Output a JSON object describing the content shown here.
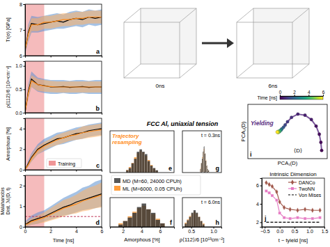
{
  "figure": {
    "title": "FCC Al, uniaxial tension",
    "snapshots": [
      "0ns",
      "6ns"
    ],
    "training": {
      "label": "Training",
      "range": [
        0,
        1.5
      ],
      "color": "#e8686a"
    }
  },
  "chart_data": [
    {
      "type": "line",
      "label": "a",
      "ylabel": "Tr(σ) [GPa]",
      "x": [
        0,
        0.25,
        0.5,
        1,
        1.5,
        2,
        2.5,
        3,
        3.5,
        4,
        4.5,
        5,
        5.5,
        6
      ],
      "xlim": [
        0,
        6
      ],
      "xticks": [
        0,
        2,
        4,
        6
      ],
      "ylim": [
        6,
        8
      ],
      "yticks": [
        6,
        7,
        8
      ],
      "tick_labels": "y",
      "series": [
        {
          "color": "#000000",
          "values": [
            6.2,
            6.9,
            7.25,
            7.2,
            7.25,
            7.3,
            7.35,
            7.3,
            7.4,
            7.45,
            7.4,
            7.5,
            7.45,
            7.5
          ],
          "lower": [
            6.05,
            6.55,
            6.9,
            6.9,
            6.95,
            7.0,
            7.05,
            7.05,
            7.1,
            7.15,
            7.1,
            7.2,
            7.15,
            7.2
          ],
          "upper": [
            6.35,
            7.2,
            7.55,
            7.5,
            7.55,
            7.6,
            7.65,
            7.6,
            7.7,
            7.75,
            7.7,
            7.8,
            7.75,
            7.8
          ]
        },
        {
          "color": "#ff8c1a",
          "values": [
            6.2,
            6.85,
            7.2,
            7.2,
            7.3,
            7.3,
            7.35,
            7.4,
            7.4,
            7.45,
            7.45,
            7.5,
            7.5,
            7.5
          ],
          "lower": [
            6.1,
            6.6,
            6.95,
            6.95,
            7.05,
            7.05,
            7.1,
            7.15,
            7.15,
            7.2,
            7.2,
            7.25,
            7.25,
            7.25
          ],
          "upper": [
            6.3,
            7.1,
            7.45,
            7.45,
            7.55,
            7.55,
            7.6,
            7.65,
            7.65,
            7.7,
            7.7,
            7.75,
            7.75,
            7.75
          ]
        }
      ]
    },
    {
      "type": "line",
      "label": "b",
      "ylabel": "ρ⟨112⟩/6 [10¹³cm⁻²]",
      "x": [
        0,
        0.25,
        0.5,
        1,
        1.5,
        2,
        2.5,
        3,
        3.5,
        4,
        4.5,
        5,
        5.5,
        6
      ],
      "xlim": [
        0,
        6
      ],
      "xticks": [
        0,
        2,
        4,
        6
      ],
      "ylim": [
        0,
        1.1
      ],
      "yticks": [
        {
          "value": 0,
          "label": "0.0"
        },
        0.5,
        {
          "value": 1,
          "label": "1.0"
        }
      ],
      "tick_labels": "y",
      "series": [
        {
          "color": "#000000",
          "values": [
            0.0,
            0.45,
            0.72,
            0.6,
            0.58,
            0.55,
            0.55,
            0.56,
            0.54,
            0.55,
            0.56,
            0.54,
            0.55,
            0.55
          ],
          "lower": [
            0.0,
            0.3,
            0.55,
            0.45,
            0.42,
            0.4,
            0.4,
            0.42,
            0.4,
            0.4,
            0.42,
            0.4,
            0.4,
            0.4
          ],
          "upper": [
            0.0,
            0.6,
            0.88,
            0.75,
            0.72,
            0.7,
            0.7,
            0.7,
            0.68,
            0.7,
            0.7,
            0.68,
            0.7,
            0.7
          ]
        },
        {
          "color": "#ff8c1a",
          "values": [
            0.0,
            0.42,
            0.68,
            0.6,
            0.57,
            0.56,
            0.55,
            0.55,
            0.55,
            0.55,
            0.55,
            0.55,
            0.55,
            0.55
          ],
          "lower": [
            0.0,
            0.3,
            0.55,
            0.47,
            0.45,
            0.44,
            0.43,
            0.43,
            0.43,
            0.43,
            0.43,
            0.43,
            0.43,
            0.43
          ],
          "upper": [
            0.0,
            0.55,
            0.8,
            0.72,
            0.7,
            0.68,
            0.67,
            0.67,
            0.67,
            0.67,
            0.67,
            0.67,
            0.67,
            0.67
          ]
        }
      ]
    },
    {
      "type": "line",
      "label": "c",
      "ylabel": "Amorphous [%]",
      "legend": "bottom",
      "x": [
        0,
        0.25,
        0.5,
        1,
        1.5,
        2,
        2.5,
        3,
        3.5,
        4,
        4.5,
        5,
        5.5,
        6
      ],
      "xlim": [
        0,
        6
      ],
      "xticks": [
        0,
        2,
        4,
        6
      ],
      "ylim": [
        0,
        5
      ],
      "yticks": [
        0,
        2,
        4
      ],
      "tick_labels": "y",
      "series": [
        {
          "color": "#000000",
          "values": [
            0.0,
            0.6,
            1.2,
            2.0,
            2.4,
            2.7,
            3.0,
            3.1,
            3.3,
            3.5,
            3.6,
            3.8,
            3.9,
            4.0
          ],
          "lower": [
            0.0,
            0.3,
            0.8,
            1.5,
            1.8,
            2.1,
            2.4,
            2.5,
            2.7,
            2.9,
            3.0,
            3.2,
            3.3,
            3.4
          ],
          "upper": [
            0.0,
            0.9,
            1.6,
            2.5,
            3.0,
            3.3,
            3.6,
            3.7,
            3.9,
            4.1,
            4.2,
            4.4,
            4.5,
            4.6
          ]
        },
        {
          "color": "#ff8c1a",
          "values": [
            0.0,
            0.5,
            1.1,
            1.9,
            2.3,
            2.6,
            2.9,
            3.1,
            3.3,
            3.4,
            3.6,
            3.7,
            3.8,
            3.9
          ],
          "lower": [
            0.0,
            0.3,
            0.8,
            1.5,
            1.9,
            2.2,
            2.4,
            2.6,
            2.8,
            2.9,
            3.0,
            3.1,
            3.2,
            3.3
          ],
          "upper": [
            0.0,
            0.7,
            1.4,
            2.3,
            2.7,
            3.0,
            3.4,
            3.6,
            3.8,
            3.9,
            4.2,
            4.3,
            4.4,
            4.5
          ]
        }
      ]
    },
    {
      "type": "line",
      "label": "d",
      "ylabel": [
        "Malahanobis",
        "Dist. ℳ(D, t)"
      ],
      "xlabel": "Time [ns]",
      "x": [
        0,
        0.25,
        0.5,
        1,
        1.5,
        2,
        2.5,
        3,
        3.5,
        4,
        4.5,
        5,
        5.5,
        6
      ],
      "xlim": [
        0,
        6
      ],
      "xticks": [
        0,
        2,
        4,
        6
      ],
      "ylim": [
        0,
        2.5
      ],
      "yticks": [
        0,
        1,
        2
      ],
      "hline": 0.5,
      "series": [
        {
          "color": "#000000",
          "values": [
            0.1,
            0.2,
            0.3,
            0.4,
            0.5,
            0.65,
            0.8,
            0.95,
            1.05,
            1.2,
            1.3,
            1.4,
            1.5,
            1.6
          ],
          "lower": [
            0.0,
            0.05,
            0.1,
            0.15,
            0.25,
            0.35,
            0.45,
            0.55,
            0.6,
            0.7,
            0.8,
            0.85,
            0.9,
            1.0
          ],
          "upper": [
            0.25,
            0.4,
            0.55,
            0.7,
            0.8,
            1.0,
            1.2,
            1.4,
            1.55,
            1.7,
            1.9,
            2.0,
            2.2,
            2.3
          ]
        },
        {
          "color": "#ff8c1a",
          "values": [
            0.1,
            0.15,
            0.25,
            0.35,
            0.45,
            0.6,
            0.75,
            0.9,
            1.0,
            1.1,
            1.25,
            1.35,
            1.45,
            1.55
          ],
          "lower": [
            0.0,
            0.05,
            0.1,
            0.15,
            0.2,
            0.3,
            0.4,
            0.5,
            0.6,
            0.65,
            0.75,
            0.8,
            0.9,
            0.95
          ],
          "upper": [
            0.2,
            0.3,
            0.4,
            0.55,
            0.7,
            0.9,
            1.1,
            1.3,
            1.4,
            1.55,
            1.75,
            1.9,
            2.0,
            2.15
          ]
        }
      ]
    },
    {
      "type": "histogram",
      "label": "e",
      "annotations": [
        "Trajectory",
        "resampling"
      ],
      "legend": "bottom",
      "xlim": [
        0,
        1.2
      ],
      "ylim": [
        0,
        0.3
      ],
      "tick_labels": false,
      "bins": [
        0.3,
        0.35,
        0.4,
        0.45,
        0.5,
        0.55,
        0.6,
        0.65,
        0.7,
        0.75,
        0.8,
        0.85,
        0.9
      ],
      "series": [
        {
          "name": "MD (M=60, 24000 CPUh)",
          "color": "#3a3a3a",
          "values": [
            0.017,
            0.033,
            0.067,
            0.1,
            0.15,
            0.167,
            0.15,
            0.133,
            0.083,
            0.05,
            0.033,
            0.017
          ]
        },
        {
          "name": "ML (M=6000, 0.05 CPUh)",
          "color": "#ff8c1a",
          "values": [
            0.02,
            0.04,
            0.07,
            0.11,
            0.14,
            0.155,
            0.145,
            0.12,
            0.09,
            0.055,
            0.03,
            0.015
          ]
        }
      ]
    },
    {
      "type": "histogram",
      "label": "f",
      "xlabel": "Amorphous [%]",
      "xlim": [
        0.6,
        7.5
      ],
      "xticks": [
        2,
        4,
        6
      ],
      "ylim": [
        0,
        0.25
      ],
      "tick_labels": "x",
      "bins": [
        1.5,
        2,
        2.5,
        3,
        3.5,
        4,
        4.5,
        5,
        5.5,
        6,
        6.5
      ],
      "series": [
        {
          "color": "#3a3a3a",
          "values": [
            0.02,
            0.05,
            0.08,
            0.12,
            0.17,
            0.2,
            0.15,
            0.12,
            0.06,
            0.03
          ]
        },
        {
          "color": "#ff8c1a",
          "values": [
            0.03,
            0.05,
            0.09,
            0.13,
            0.16,
            0.18,
            0.15,
            0.11,
            0.07,
            0.03
          ]
        }
      ]
    },
    {
      "type": "histogram",
      "label": "g",
      "annotations": [
        "t = 0.3ns"
      ],
      "xlim": [
        0.3,
        1.18
      ],
      "ylim": [
        0,
        0.35
      ],
      "tick_labels": false,
      "bins": [
        0.7,
        0.72,
        0.74,
        0.76,
        0.78,
        0.8,
        0.82,
        0.84,
        0.86,
        0.88,
        0.9
      ],
      "series": [
        {
          "color": "#3a3a3a",
          "values": [
            0.03,
            0.08,
            0.12,
            0.18,
            0.22,
            0.16,
            0.1,
            0.06,
            0.03,
            0.02
          ]
        },
        {
          "color": "#ff8c1a",
          "values": [
            0.04,
            0.08,
            0.13,
            0.17,
            0.2,
            0.16,
            0.11,
            0.06,
            0.03,
            0.02
          ]
        }
      ]
    },
    {
      "type": "histogram",
      "label": "h",
      "annotations": [
        "t = 6.0ns"
      ],
      "xlabel": "ρ⟨112⟩/6 [10¹³cm⁻²]",
      "xlim": [
        0.3,
        1.18
      ],
      "xticks": [
        0.5,
        {
          "value": 1,
          "label": "1.0"
        }
      ],
      "ylim": [
        0,
        0.35
      ],
      "tick_labels": "x",
      "bins": [
        0.35,
        0.4,
        0.45,
        0.5,
        0.55,
        0.6,
        0.65,
        0.7,
        0.75,
        0.8
      ],
      "series": [
        {
          "color": "#3a3a3a",
          "values": [
            0.04,
            0.08,
            0.12,
            0.17,
            0.2,
            0.17,
            0.12,
            0.07,
            0.03
          ]
        },
        {
          "color": "#ff8c1a",
          "values": [
            0.05,
            0.09,
            0.13,
            0.16,
            0.18,
            0.16,
            0.12,
            0.07,
            0.04
          ]
        }
      ]
    },
    {
      "type": "scatter",
      "label": "i",
      "xlabel": "PCA₁(D)",
      "ylabel": "PCA₂(D)",
      "color": "#5a2d82",
      "annotations": [
        "Yielding",
        "⟨D⟩"
      ],
      "xlim": [
        0,
        1
      ],
      "ylim": [
        0,
        1
      ],
      "tick_labels": false,
      "x": [
        0.93,
        0.92,
        0.9,
        0.86,
        0.8,
        0.72,
        0.63,
        0.55,
        0.5,
        0.47,
        0.45,
        0.43,
        0.42,
        0.41,
        0.4,
        0.4,
        0.39,
        0.38,
        0.38,
        0.37
      ],
      "values": [
        0.15,
        0.3,
        0.45,
        0.6,
        0.72,
        0.8,
        0.82,
        0.76,
        0.68,
        0.62,
        0.58,
        0.55,
        0.53,
        0.52,
        0.5,
        0.51,
        0.49,
        0.5,
        0.48,
        0.49
      ],
      "time": [
        0,
        0.1,
        0.2,
        0.3,
        0.4,
        0.5,
        0.6,
        0.8,
        1.0,
        1.3,
        1.6,
        2.0,
        2.5,
        3.0,
        3.5,
        4.0,
        4.5,
        5.0,
        5.5,
        6.0
      ],
      "colorbar": {
        "label": "Time [ns]",
        "range": [
          0,
          6
        ],
        "ticks": [
          0,
          2,
          4,
          6
        ]
      }
    },
    {
      "type": "line",
      "label": "j",
      "title": "Intrinsic Dimension",
      "xlabel": "t − tyield [ns]",
      "legend": "upper right",
      "x": [
        -0.45,
        -0.35,
        -0.25,
        -0.1,
        0.0,
        0.15,
        0.35,
        0.6,
        0.85,
        1.1,
        1.35
      ],
      "xlim": [
        -0.6,
        1.5
      ],
      "xticks": [
        {
          "value": -0.5,
          "label": "−0.5"
        },
        {
          "value": 0,
          "label": "0.0"
        },
        0.5,
        {
          "value": 1,
          "label": "1.0"
        },
        1.5
      ],
      "ylim": [
        1.5,
        6.8
      ],
      "yticks": [
        2,
        4,
        6
      ],
      "series": [
        {
          "name": "DANCo",
          "color": "#a0574a",
          "marker": "diamond",
          "values": [
            6.3,
            6.1,
            5.9,
            5.3,
            4.2,
            3.6,
            3.4,
            3.3,
            3.4,
            3.3,
            3.3
          ]
        },
        {
          "name": "TwoNN",
          "color": "#e67ac3",
          "marker": "square",
          "values": [
            5.4,
            5.2,
            4.9,
            4.4,
            3.0,
            2.5,
            2.4,
            2.5,
            2.4,
            2.4,
            2.5
          ]
        },
        {
          "name": "Von Mises",
          "color": "#000000",
          "line_style": "dashed",
          "values": [
            2,
            2,
            2,
            2,
            2,
            2,
            2,
            2,
            2,
            2,
            2
          ]
        }
      ]
    }
  ]
}
